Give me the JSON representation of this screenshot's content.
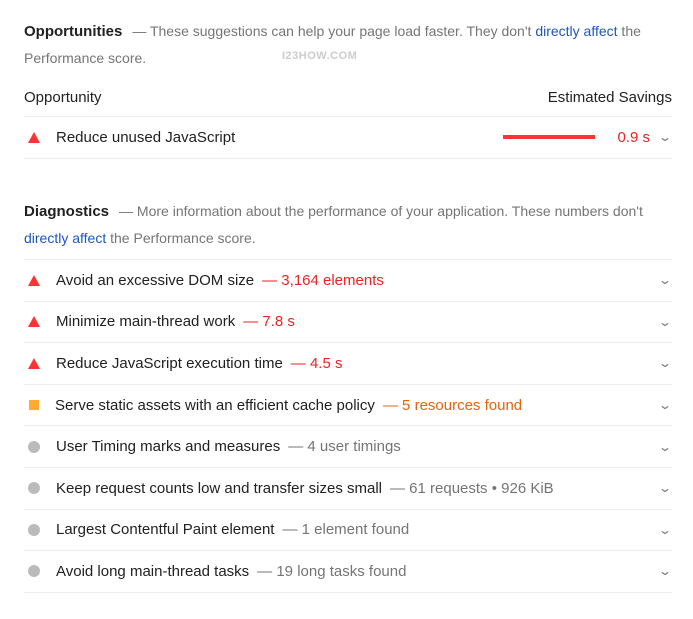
{
  "opportunities": {
    "title": "Opportunities",
    "desc_pre": "— These suggestions can help your page load faster. They don't ",
    "link": "directly affect",
    "desc_post": " the Performance score.",
    "col_left": "Opportunity",
    "col_right": "Estimated Savings",
    "items": [
      {
        "label": "Reduce unused JavaScript",
        "value": "0.9 s",
        "severity": "fail",
        "bar_fraction": 1.0
      }
    ]
  },
  "watermark": "I23HOW.COM",
  "diagnostics": {
    "title": "Diagnostics",
    "desc_pre": "— More information about the performance of your application. These numbers don't ",
    "link": "directly affect",
    "desc_post": " the Performance score.",
    "items": [
      {
        "label": "Avoid an excessive DOM size",
        "detail": "— 3,164 elements",
        "severity": "fail"
      },
      {
        "label": "Minimize main-thread work",
        "detail": "— 7.8 s",
        "severity": "fail"
      },
      {
        "label": "Reduce JavaScript execution time",
        "detail": "— 4.5 s",
        "severity": "fail"
      },
      {
        "label": "Serve static assets with an efficient cache policy",
        "detail": "— 5 resources found",
        "severity": "average"
      },
      {
        "label": "User Timing marks and measures",
        "detail": "— 4 user timings",
        "severity": "info"
      },
      {
        "label": "Keep request counts low and transfer sizes small",
        "detail": "— 61 requests • 926 KiB",
        "severity": "info"
      },
      {
        "label": "Largest Contentful Paint element",
        "detail": "— 1 element found",
        "severity": "info"
      },
      {
        "label": "Avoid long main-thread tasks",
        "detail": "— 19 long tasks found",
        "severity": "info"
      }
    ]
  },
  "colors": {
    "fail": "#ff3333",
    "average": "#ffaa33",
    "info": "#bbbbbb",
    "link": "#1a56c7"
  }
}
